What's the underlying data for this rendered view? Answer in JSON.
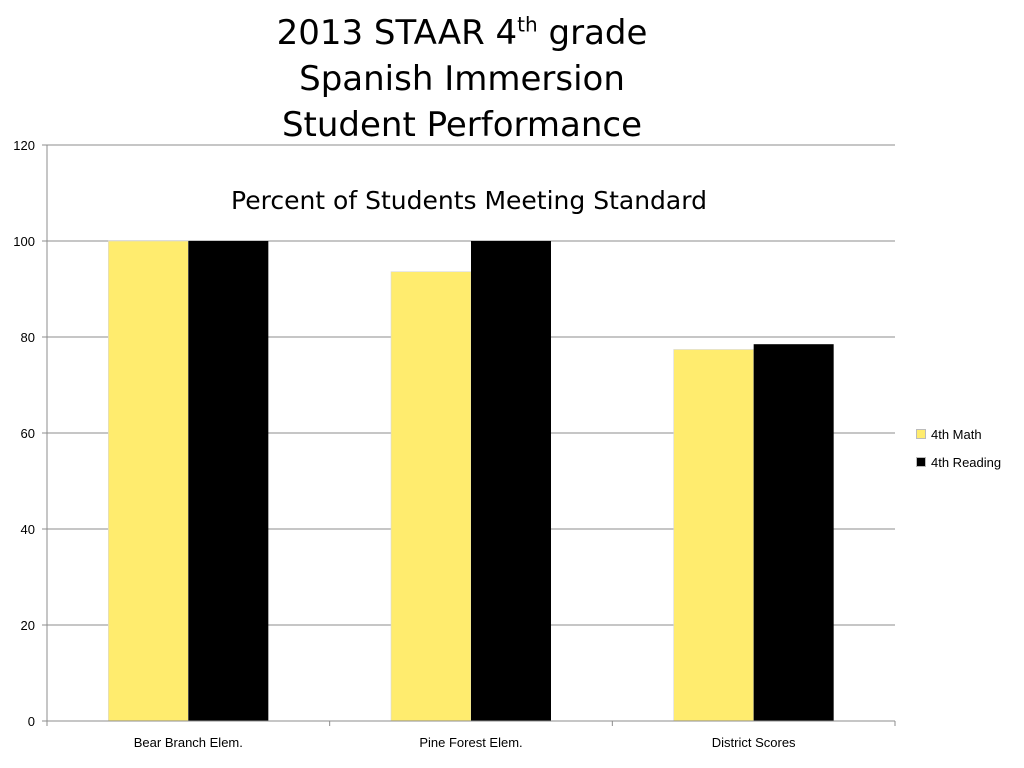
{
  "title": {
    "line1_prefix": "2013 STAAR 4",
    "line1_sup": "th",
    "line1_suffix": " grade",
    "line2": "Spanish Immersion",
    "line3": "Student Performance"
  },
  "chart_data": {
    "type": "bar",
    "subtitle": "Percent of Students Meeting Standard",
    "categories": [
      "Bear Branch Elem.",
      "Pine Forest Elem.",
      "District Scores"
    ],
    "series": [
      {
        "name": "4th Math",
        "color": "#FFEC6E",
        "values": [
          100,
          93.6,
          77.4
        ]
      },
      {
        "name": "4th Reading",
        "color": "#000000",
        "values": [
          100,
          100,
          78.5
        ]
      }
    ],
    "ylim": [
      0,
      120
    ],
    "yticks": [
      0,
      20,
      40,
      60,
      80,
      100,
      120
    ],
    "grid": true,
    "legend": "right"
  }
}
